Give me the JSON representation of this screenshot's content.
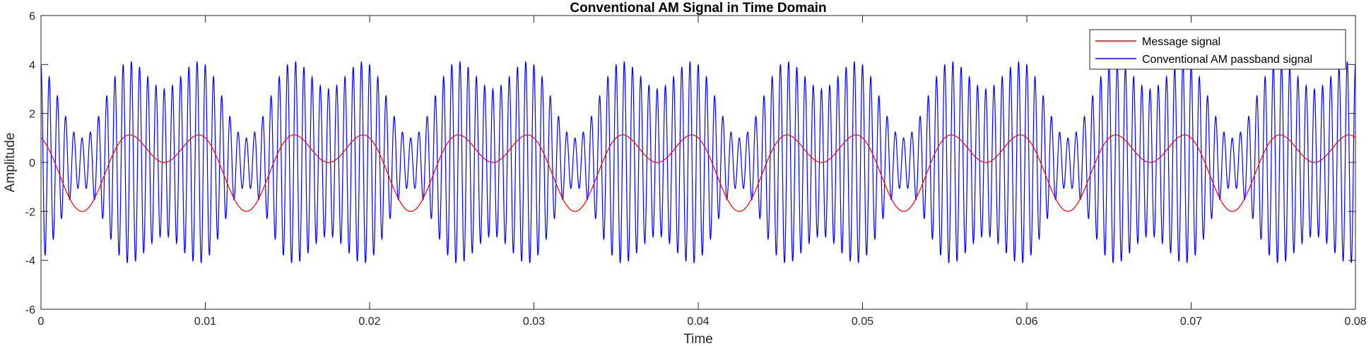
{
  "chart_data": {
    "type": "line",
    "title": "Conventional AM Signal in Time Domain",
    "xlabel": "Time",
    "ylabel": "Amplitude",
    "xlim": [
      0,
      0.08
    ],
    "ylim": [
      -6,
      6
    ],
    "x_ticks": [
      0,
      0.01,
      0.02,
      0.03,
      0.04,
      0.05,
      0.06,
      0.07,
      0.08
    ],
    "x_tick_labels": [
      "0",
      "0.01",
      "0.02",
      "0.03",
      "0.04",
      "0.05",
      "0.06",
      "0.07",
      "0.08"
    ],
    "y_ticks": [
      -6,
      -4,
      -2,
      0,
      2,
      4,
      6
    ],
    "y_tick_labels": [
      "-6",
      "-4",
      "-2",
      "0",
      "2",
      "4",
      "6"
    ],
    "grid": false,
    "legend_position": "top-right",
    "series": [
      {
        "name": "Message signal",
        "color": "#ff0000",
        "formula": "m(t) = cos(2*pi*200*t) + cos(2*pi*100*t + pi/2)"
      },
      {
        "name": "Conventional AM passband signal",
        "color": "#0000ff",
        "formula": "s(t) = (3 + m(t)) * cos(2*pi*2000*t)"
      }
    ]
  }
}
